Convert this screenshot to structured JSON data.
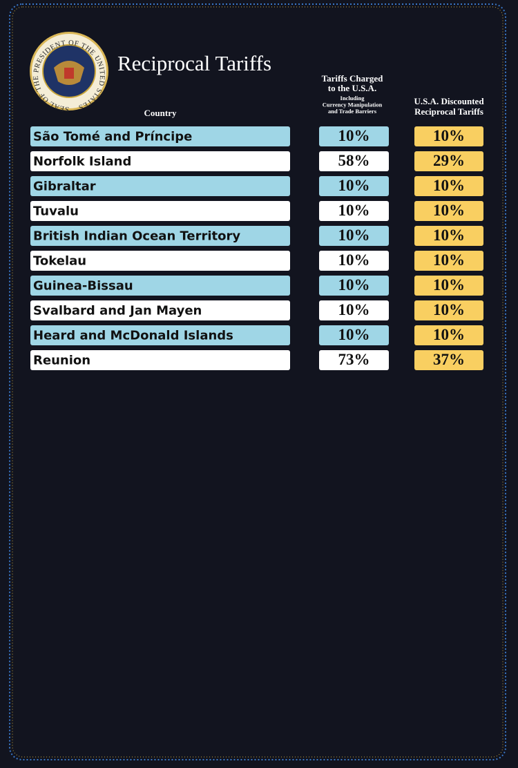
{
  "seal": {
    "text": "SEAL OF THE PRESIDENT OF THE UNITED STATES"
  },
  "header": {
    "title": "Reciprocal Tariffs"
  },
  "table": {
    "columns": {
      "country": "Country",
      "charged": {
        "title_lines": [
          "Tariffs Charged",
          "to the U.S.A."
        ],
        "note_lines": [
          "Including",
          "Currency Manipulation",
          "and Trade Barriers"
        ]
      },
      "discounted": {
        "title_lines": [
          "U.S.A. Discounted",
          "Reciprocal Tariffs"
        ]
      }
    },
    "rows": [
      {
        "country": "São Tomé and Príncipe",
        "charged": "10%",
        "discounted": "10%"
      },
      {
        "country": "Norfolk Island",
        "charged": "58%",
        "discounted": "29%"
      },
      {
        "country": "Gibraltar",
        "charged": "10%",
        "discounted": "10%"
      },
      {
        "country": "Tuvalu",
        "charged": "10%",
        "discounted": "10%"
      },
      {
        "country": "British Indian Ocean Territory",
        "charged": "10%",
        "discounted": "10%"
      },
      {
        "country": "Tokelau",
        "charged": "10%",
        "discounted": "10%"
      },
      {
        "country": "Guinea-Bissau",
        "charged": "10%",
        "discounted": "10%"
      },
      {
        "country": "Svalbard and Jan Mayen",
        "charged": "10%",
        "discounted": "10%"
      },
      {
        "country": "Heard and McDonald Islands",
        "charged": "10%",
        "discounted": "10%"
      },
      {
        "country": "Reunion",
        "charged": "73%",
        "discounted": "37%"
      }
    ]
  }
}
